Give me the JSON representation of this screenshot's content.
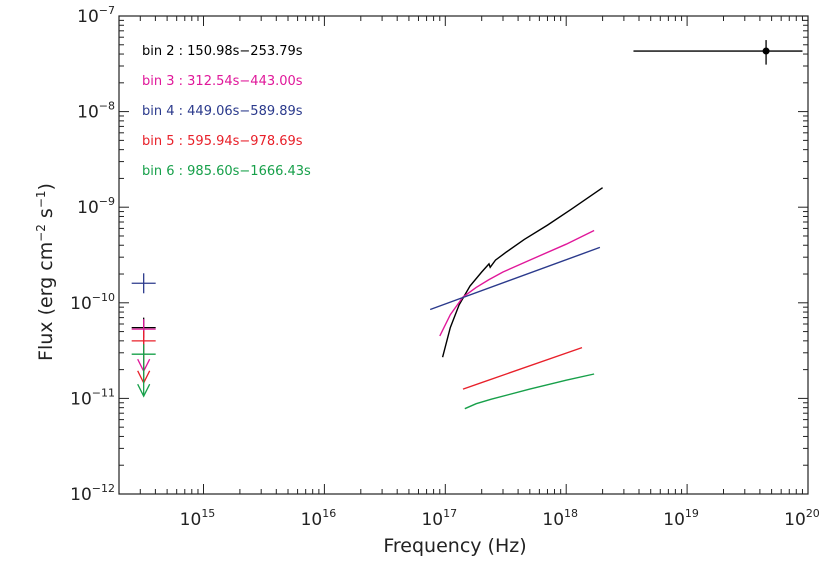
{
  "chart_data": {
    "type": "line",
    "xscale": "log",
    "yscale": "log",
    "xlim": [
      200000000000000.0,
      1e+20
    ],
    "ylim": [
      1e-12,
      1e-07
    ],
    "xlabel": "Frequency (Hz)",
    "ylabel": "Flux (erg cm⁻² s⁻¹)",
    "ylabel_parts": {
      "pre": "Flux (erg cm",
      "e1": "−2",
      "mid": " s",
      "e2": "−1",
      "post": ")"
    },
    "grid": false,
    "legend_position": "top-left",
    "x_ticks": [
      {
        "value": 1000000000000000.0,
        "base": "10",
        "exp": "15"
      },
      {
        "value": 1e+16,
        "base": "10",
        "exp": "16"
      },
      {
        "value": 1e+17,
        "base": "10",
        "exp": "17"
      },
      {
        "value": 1e+18,
        "base": "10",
        "exp": "18"
      },
      {
        "value": 1e+19,
        "base": "10",
        "exp": "19"
      },
      {
        "value": 1e+20,
        "base": "10",
        "exp": "20"
      }
    ],
    "y_ticks": [
      {
        "value": 1e-12,
        "base": "10",
        "exp": "−12"
      },
      {
        "value": 1e-11,
        "base": "10",
        "exp": "−11"
      },
      {
        "value": 1e-10,
        "base": "10",
        "exp": "−10"
      },
      {
        "value": 1e-09,
        "base": "10",
        "exp": "−9"
      },
      {
        "value": 1e-08,
        "base": "10",
        "exp": "−8"
      },
      {
        "value": 1e-07,
        "base": "10",
        "exp": "−7"
      }
    ],
    "legend": [
      {
        "label": "bin 2 : 150.98s−253.79s",
        "color": "#000000"
      },
      {
        "label": "bin 3 : 312.54s−443.00s",
        "color": "#e0189a"
      },
      {
        "label": "bin 4 : 449.06s−589.89s",
        "color": "#2b3a8c"
      },
      {
        "label": "bin 5 : 595.94s−978.69s",
        "color": "#e8202a"
      },
      {
        "label": "bin 6 : 985.60s−1666.43s",
        "color": "#17a04a"
      }
    ],
    "series": [
      {
        "color": "#000000",
        "x": [
          9.5e+16,
          1.1e+17,
          1.3e+17,
          1.6e+17,
          2e+17,
          2.3e+17,
          2.35e+17,
          2.6e+17,
          3.2e+17,
          4.5e+17,
          7e+17,
          1.1e+18,
          2e+18
        ],
        "y": [
          2.7e-11,
          5.5e-11,
          9.5e-11,
          1.5e-10,
          2.1e-10,
          2.55e-10,
          2.35e-10,
          2.8e-10,
          3.4e-10,
          4.6e-10,
          6.5e-10,
          9.5e-10,
          1.6e-09
        ]
      },
      {
        "color": "#e0189a",
        "x": [
          9e+16,
          1.1e+17,
          1.4e+17,
          1.8e+17,
          2.3e+17,
          3e+17,
          5e+17,
          1e+18,
          1.7e+18
        ],
        "y": [
          4.5e-11,
          7.5e-11,
          1.15e-10,
          1.45e-10,
          1.75e-10,
          2.1e-10,
          2.8e-10,
          4.1e-10,
          5.7e-10
        ]
      },
      {
        "color": "#2b3a8c",
        "x": [
          7.5e+16,
          1.9e+18
        ],
        "y": [
          8.5e-11,
          3.8e-10
        ]
      },
      {
        "color": "#e8202a",
        "x": [
          1.4e+17,
          1.35e+18
        ],
        "y": [
          1.25e-11,
          3.4e-11
        ]
      },
      {
        "color": "#17a04a",
        "x": [
          1.45e+17,
          1.8e+17,
          2.4e+17,
          5e+17,
          1e+18,
          1.7e+18
        ],
        "y": [
          7.8e-12,
          8.8e-12,
          9.8e-12,
          1.25e-11,
          1.55e-11,
          1.8e-11
        ]
      }
    ],
    "uv_points": [
      {
        "color": "#2b3a8c",
        "x": 320000000000000.0,
        "y": 1.6e-10,
        "upper_limit": false
      },
      {
        "color": "#000000",
        "x": 320000000000000.0,
        "y": 5.5e-11,
        "upper_limit": false
      },
      {
        "color": "#e0189a",
        "x": 320000000000000.0,
        "y": 5.3e-11,
        "upper_limit": true
      },
      {
        "color": "#e8202a",
        "x": 320000000000000.0,
        "y": 4e-11,
        "upper_limit": true
      },
      {
        "color": "#17a04a",
        "x": 320000000000000.0,
        "y": 2.9e-11,
        "upper_limit": true
      }
    ],
    "xray_point": {
      "color": "#000000",
      "x": 4.5e+19,
      "y": 4.3e-08,
      "x_err": [
        3.6e+18,
        9e+19
      ],
      "y_err": [
        3.1e-08,
        5.6e-08
      ]
    }
  }
}
